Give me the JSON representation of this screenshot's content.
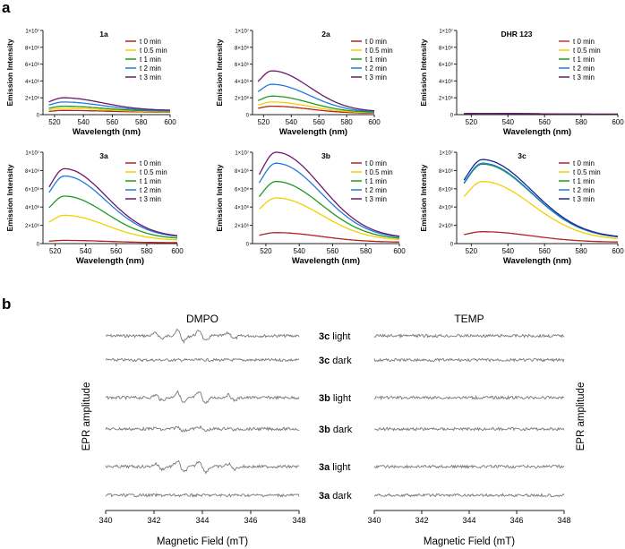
{
  "panel_labels": {
    "a": "a",
    "b": "b"
  },
  "legend_labels": [
    "t 0 min",
    "t 0.5 min",
    "t 1 min",
    "t 2 min",
    "t 3 min"
  ],
  "colors": {
    "t0": "#b22222",
    "t05": "#f2d000",
    "t1": "#1f9a1f",
    "t2": "#1e7be0",
    "t3": "#6a1a6a",
    "axis": "#222222",
    "epr_trace": "#777777"
  },
  "chart_data": [
    {
      "type": "line",
      "title": "1a",
      "xlabel": "Wavelength (nm)",
      "ylabel": "Emission Intensity",
      "xlim": [
        512,
        600
      ],
      "ylim": [
        0,
        10000000
      ],
      "x_ticks": [
        520,
        540,
        560,
        580,
        600
      ],
      "y_ticks": [
        0,
        2000000,
        4000000,
        6000000,
        8000000,
        10000000
      ],
      "y_tick_labels": [
        "0",
        "2×10⁶",
        "4×10⁶",
        "6×10⁶",
        "8×10⁶",
        "1×10⁷"
      ],
      "legend_colors": [
        "#b22222",
        "#f2d000",
        "#1f9a1f",
        "#1e7be0",
        "#6a1a6a"
      ],
      "series": [
        {
          "name": "t 0 min",
          "peak": 500000,
          "end": 300000
        },
        {
          "name": "t 0.5 min",
          "peak": 750000,
          "end": 350000
        },
        {
          "name": "t 1 min",
          "peak": 1000000,
          "end": 400000
        },
        {
          "name": "t 2 min",
          "peak": 1500000,
          "end": 450000
        },
        {
          "name": "t 3 min",
          "peak": 2000000,
          "end": 500000
        }
      ]
    },
    {
      "type": "line",
      "title": "2a",
      "xlabel": "Wavelength (nm)",
      "ylabel": "Emission Intensity",
      "xlim": [
        512,
        600
      ],
      "ylim": [
        0,
        10000000
      ],
      "x_ticks": [
        520,
        540,
        560,
        580,
        600
      ],
      "y_ticks": [
        0,
        2000000,
        4000000,
        6000000,
        8000000,
        10000000
      ],
      "y_tick_labels": [
        "0",
        "2×10⁶",
        "4×10⁶",
        "6×10⁶",
        "8×10⁶",
        "1×10⁷"
      ],
      "legend_colors": [
        "#b22222",
        "#f2d000",
        "#1f9a1f",
        "#1e7be0",
        "#6a1a6a"
      ],
      "series": [
        {
          "name": "t 0 min",
          "peak": 1000000,
          "end": 150000
        },
        {
          "name": "t 0.5 min",
          "peak": 1500000,
          "end": 200000
        },
        {
          "name": "t 1 min",
          "peak": 2200000,
          "end": 250000
        },
        {
          "name": "t 2 min",
          "peak": 3600000,
          "end": 300000
        },
        {
          "name": "t 3 min",
          "peak": 5200000,
          "end": 350000
        }
      ]
    },
    {
      "type": "line",
      "title": "DHR 123",
      "xlabel": "Wavelength (nm)",
      "ylabel": "Emission Intensity",
      "xlim": [
        512,
        600
      ],
      "ylim": [
        0,
        10000000
      ],
      "x_ticks": [
        520,
        540,
        560,
        580,
        600
      ],
      "y_ticks": [
        0,
        2000000,
        4000000,
        6000000,
        8000000,
        10000000
      ],
      "y_tick_labels": [
        "0",
        "2×10⁶",
        "4×10⁶",
        "6×10⁶",
        "8×10⁶",
        "1×10⁷"
      ],
      "legend_colors": [
        "#d03030",
        "#f2d000",
        "#1f9a1f",
        "#1e7be0",
        "#6a1a6a"
      ],
      "series": [
        {
          "name": "t 0 min",
          "peak": 150000,
          "end": 50000
        },
        {
          "name": "t 0.5 min",
          "peak": 150000,
          "end": 50000
        },
        {
          "name": "t 1 min",
          "peak": 150000,
          "end": 50000
        },
        {
          "name": "t 2 min",
          "peak": 150000,
          "end": 50000
        },
        {
          "name": "t 3 min",
          "peak": 150000,
          "end": 50000
        }
      ]
    },
    {
      "type": "line",
      "title": "3a",
      "xlabel": "Wavelength (nm)",
      "ylabel": "Emission Intensity",
      "xlim": [
        512,
        600
      ],
      "ylim": [
        0,
        10000000
      ],
      "x_ticks": [
        520,
        540,
        560,
        580,
        600
      ],
      "y_ticks": [
        0,
        2000000,
        4000000,
        6000000,
        8000000,
        10000000
      ],
      "y_tick_labels": [
        "0",
        "2×10⁶",
        "4×10⁶",
        "6×10⁶",
        "8×10⁶",
        "1×10⁷"
      ],
      "legend_colors": [
        "#b22222",
        "#f2d000",
        "#1f9a1f",
        "#1e7be0",
        "#6a1a6a"
      ],
      "series": [
        {
          "name": "t 0 min",
          "peak": 350000,
          "end": 100000
        },
        {
          "name": "t 0.5 min",
          "peak": 3100000,
          "end": 350000
        },
        {
          "name": "t 1 min",
          "peak": 5200000,
          "end": 500000
        },
        {
          "name": "t 2 min",
          "peak": 7400000,
          "end": 650000
        },
        {
          "name": "t 3 min",
          "peak": 8200000,
          "end": 700000
        }
      ]
    },
    {
      "type": "line",
      "title": "3b",
      "xlabel": "Wavelength (nm)",
      "ylabel": "Emission Intensity",
      "xlim": [
        512,
        600
      ],
      "ylim": [
        0,
        10000000
      ],
      "x_ticks": [
        520,
        540,
        560,
        580,
        600
      ],
      "y_ticks": [
        0,
        2000000,
        4000000,
        6000000,
        8000000,
        10000000
      ],
      "y_tick_labels": [
        "0",
        "2×10⁶",
        "4×10⁶",
        "6×10⁶",
        "8×10⁶",
        "1×10⁷"
      ],
      "legend_colors": [
        "#b22222",
        "#f2d000",
        "#1f9a1f",
        "#1e7be0",
        "#6a1a6a"
      ],
      "series": [
        {
          "name": "t 0 min",
          "peak": 1200000,
          "end": 150000
        },
        {
          "name": "t 0.5 min",
          "peak": 5000000,
          "end": 350000
        },
        {
          "name": "t 1 min",
          "peak": 6800000,
          "end": 450000
        },
        {
          "name": "t 2 min",
          "peak": 8800000,
          "end": 550000
        },
        {
          "name": "t 3 min",
          "peak": 10000000,
          "end": 600000
        }
      ]
    },
    {
      "type": "line",
      "title": "3c",
      "xlabel": "Wavelength (nm)",
      "ylabel": "Emission Intensity",
      "xlim": [
        512,
        600
      ],
      "ylim": [
        0,
        10000000
      ],
      "x_ticks": [
        520,
        540,
        560,
        580,
        600
      ],
      "y_ticks": [
        0,
        2000000,
        4000000,
        6000000,
        8000000,
        10000000
      ],
      "y_tick_labels": [
        "0",
        "2×10⁶",
        "4×10⁶",
        "6×10⁶",
        "8×10⁶",
        "1×10⁷"
      ],
      "legend_colors": [
        "#b22222",
        "#f2d000",
        "#1f9a1f",
        "#1e7be0",
        "#1a2a8a"
      ],
      "series": [
        {
          "name": "t 0 min",
          "peak": 1300000,
          "end": 150000
        },
        {
          "name": "t 0.5 min",
          "peak": 6800000,
          "end": 400000
        },
        {
          "name": "t 1 min",
          "peak": 8700000,
          "end": 550000
        },
        {
          "name": "t 2 min",
          "peak": 8800000,
          "end": 560000
        },
        {
          "name": "t 3 min",
          "peak": 9200000,
          "end": 600000
        }
      ]
    },
    {
      "type": "line",
      "title": "DMPO",
      "xlabel": "Magnetic Field (mT)",
      "ylabel": "EPR amplitude",
      "xlim": [
        340,
        348
      ],
      "x_ticks": [
        340,
        342,
        344,
        346,
        348
      ],
      "traces": [
        {
          "sample": "3c",
          "condition": "light",
          "signal": "strong"
        },
        {
          "sample": "3c",
          "condition": "dark",
          "signal": "none"
        },
        {
          "sample": "3b",
          "condition": "light",
          "signal": "strong"
        },
        {
          "sample": "3b",
          "condition": "dark",
          "signal": "weak"
        },
        {
          "sample": "3a",
          "condition": "light",
          "signal": "strong"
        },
        {
          "sample": "3a",
          "condition": "dark",
          "signal": "none"
        }
      ]
    },
    {
      "type": "line",
      "title": "TEMP",
      "xlabel": "Magnetic Field (mT)",
      "ylabel": "EPR amplitude",
      "xlim": [
        340,
        348
      ],
      "x_ticks": [
        340,
        342,
        344,
        346,
        348
      ],
      "traces": [
        {
          "sample": "3c",
          "condition": "light",
          "signal": "none"
        },
        {
          "sample": "3c",
          "condition": "dark",
          "signal": "none"
        },
        {
          "sample": "3b",
          "condition": "light",
          "signal": "none"
        },
        {
          "sample": "3b",
          "condition": "dark",
          "signal": "none"
        },
        {
          "sample": "3a",
          "condition": "light",
          "signal": "none"
        },
        {
          "sample": "3a",
          "condition": "dark",
          "signal": "none"
        }
      ]
    }
  ]
}
